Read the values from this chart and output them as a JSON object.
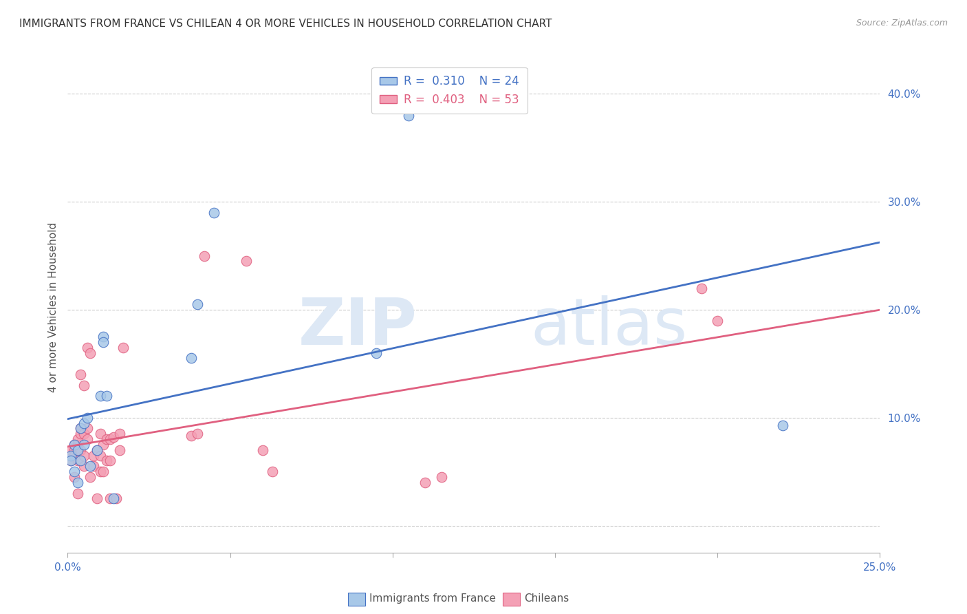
{
  "title": "IMMIGRANTS FROM FRANCE VS CHILEAN 4 OR MORE VEHICLES IN HOUSEHOLD CORRELATION CHART",
  "source": "Source: ZipAtlas.com",
  "ylabel": "4 or more Vehicles in Household",
  "xlim": [
    0.0,
    0.25
  ],
  "ylim": [
    -0.025,
    0.43
  ],
  "x_ticks": [
    0.0,
    0.05,
    0.1,
    0.15,
    0.2,
    0.25
  ],
  "y_ticks": [
    0.0,
    0.1,
    0.2,
    0.3,
    0.4
  ],
  "x_tick_labels": [
    "0.0%",
    "",
    "",
    "",
    "",
    "25.0%"
  ],
  "y_tick_labels": [
    "",
    "10.0%",
    "20.0%",
    "30.0%",
    "40.0%"
  ],
  "legend_label_france": "Immigrants from France",
  "legend_label_chilean": "Chileans",
  "color_france": "#a8c8e8",
  "color_chilean": "#f4a0b5",
  "color_france_line": "#4472c4",
  "color_chilean_line": "#e06080",
  "watermark_zip": "ZIP",
  "watermark_atlas": "atlas",
  "france_x": [
    0.001,
    0.001,
    0.002,
    0.002,
    0.003,
    0.003,
    0.004,
    0.004,
    0.005,
    0.005,
    0.006,
    0.007,
    0.009,
    0.01,
    0.011,
    0.011,
    0.012,
    0.014,
    0.038,
    0.04,
    0.045,
    0.095,
    0.105,
    0.22
  ],
  "france_y": [
    0.065,
    0.06,
    0.075,
    0.05,
    0.07,
    0.04,
    0.09,
    0.06,
    0.095,
    0.075,
    0.1,
    0.055,
    0.07,
    0.12,
    0.175,
    0.17,
    0.12,
    0.025,
    0.155,
    0.205,
    0.29,
    0.16,
    0.38,
    0.093
  ],
  "chilean_x": [
    0.001,
    0.001,
    0.001,
    0.002,
    0.002,
    0.002,
    0.002,
    0.003,
    0.003,
    0.003,
    0.003,
    0.004,
    0.004,
    0.004,
    0.004,
    0.005,
    0.005,
    0.005,
    0.005,
    0.006,
    0.006,
    0.006,
    0.007,
    0.007,
    0.008,
    0.008,
    0.009,
    0.009,
    0.01,
    0.01,
    0.01,
    0.011,
    0.011,
    0.012,
    0.012,
    0.013,
    0.013,
    0.013,
    0.014,
    0.015,
    0.016,
    0.016,
    0.017,
    0.038,
    0.04,
    0.042,
    0.055,
    0.06,
    0.063,
    0.11,
    0.115,
    0.195,
    0.2
  ],
  "chilean_y": [
    0.065,
    0.07,
    0.06,
    0.075,
    0.07,
    0.065,
    0.045,
    0.06,
    0.075,
    0.08,
    0.03,
    0.085,
    0.09,
    0.07,
    0.14,
    0.085,
    0.065,
    0.055,
    0.13,
    0.09,
    0.08,
    0.165,
    0.16,
    0.045,
    0.055,
    0.065,
    0.07,
    0.025,
    0.085,
    0.065,
    0.05,
    0.075,
    0.05,
    0.06,
    0.08,
    0.025,
    0.06,
    0.08,
    0.082,
    0.025,
    0.07,
    0.085,
    0.165,
    0.083,
    0.085,
    0.25,
    0.245,
    0.07,
    0.05,
    0.04,
    0.045,
    0.22,
    0.19
  ],
  "bg_color": "#ffffff",
  "grid_color": "#cccccc"
}
